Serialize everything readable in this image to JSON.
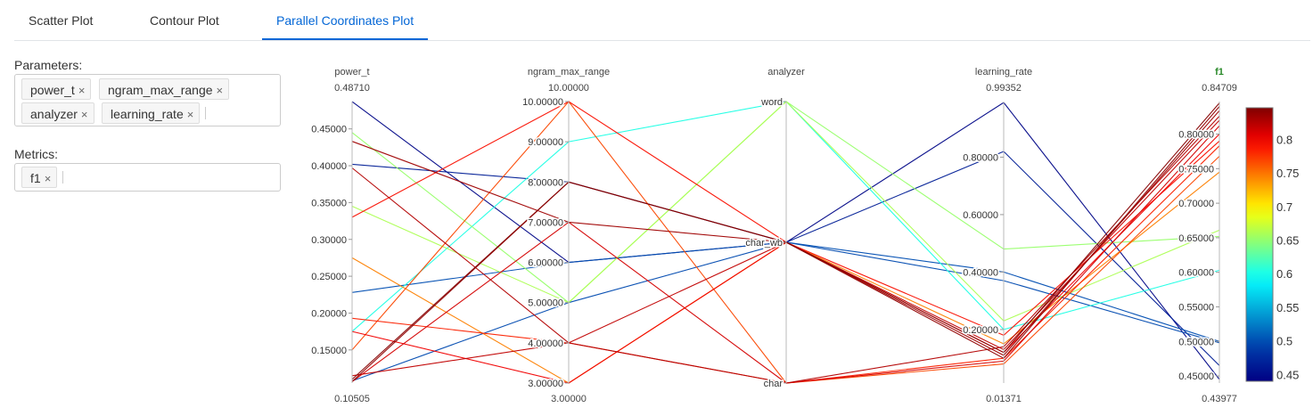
{
  "tabs": [
    {
      "label": "Scatter Plot",
      "active": false
    },
    {
      "label": "Contour Plot",
      "active": false
    },
    {
      "label": "Parallel Coordinates Plot",
      "active": true
    }
  ],
  "parameters": {
    "label": "Parameters:",
    "chips": [
      "power_t",
      "ngram_max_range",
      "analyzer",
      "learning_rate"
    ],
    "remove_glyph": "×"
  },
  "metrics": {
    "label": "Metrics:",
    "chips": [
      "f1"
    ]
  },
  "chart_data": {
    "type": "parallel_coordinates",
    "dimensions": [
      {
        "name": "power_t",
        "top": "0.48710",
        "bottom": "0.10505",
        "ticks": [
          "0.45000",
          "0.40000",
          "0.35000",
          "0.30000",
          "0.25000",
          "0.20000",
          "0.15000"
        ]
      },
      {
        "name": "ngram_max_range",
        "top": "10.00000",
        "bottom": "3.00000",
        "ticks": [
          "10.00000",
          "9.00000",
          "8.00000",
          "7.00000",
          "6.00000",
          "5.00000",
          "4.00000",
          "3.00000"
        ]
      },
      {
        "name": "analyzer",
        "top": "",
        "bottom": "",
        "ticks": [
          "word",
          "char_wb",
          "char"
        ]
      },
      {
        "name": "learning_rate",
        "top": "0.99352",
        "bottom": "0.01371",
        "ticks": [
          "0.80000",
          "0.60000",
          "0.40000",
          "0.20000"
        ]
      },
      {
        "name": "f1",
        "top": "0.84709",
        "bottom": "0.43977",
        "highlight": true,
        "ticks": [
          "0.80000",
          "0.75000",
          "0.70000",
          "0.65000",
          "0.60000",
          "0.55000",
          "0.50000",
          "0.45000"
        ]
      }
    ],
    "colorbar": {
      "ticks": [
        "0.8",
        "0.75",
        "0.7",
        "0.65",
        "0.6",
        "0.55",
        "0.5",
        "0.45"
      ],
      "min": 0.43977,
      "max": 0.84709,
      "colorscale": "jet"
    },
    "trials": [
      {
        "power_t": 0.487,
        "ngram": 6,
        "analyzer": "char_wb",
        "lr": 0.99,
        "f1": 0.445
      },
      {
        "power_t": 0.402,
        "ngram": 8,
        "analyzer": "char_wb",
        "lr": 0.82,
        "f1": 0.465
      },
      {
        "power_t": 0.228,
        "ngram": 6,
        "analyzer": "char_wb",
        "lr": 0.4,
        "f1": 0.5
      },
      {
        "power_t": 0.108,
        "ngram": 5,
        "analyzer": "char_wb",
        "lr": 0.37,
        "f1": 0.498
      },
      {
        "power_t": 0.175,
        "ngram": 9,
        "analyzer": "word",
        "lr": 0.2,
        "f1": 0.603
      },
      {
        "power_t": 0.445,
        "ngram": 5,
        "analyzer": "word",
        "lr": 0.48,
        "f1": 0.652
      },
      {
        "power_t": 0.345,
        "ngram": 5,
        "analyzer": "word",
        "lr": 0.23,
        "f1": 0.661
      },
      {
        "power_t": 0.275,
        "ngram": 3,
        "analyzer": "char_wb",
        "lr": 0.15,
        "f1": 0.745
      },
      {
        "power_t": 0.15,
        "ngram": 10,
        "analyzer": "char",
        "lr": 0.08,
        "f1": 0.768
      },
      {
        "power_t": 0.193,
        "ngram": 4,
        "analyzer": "char",
        "lr": 0.1,
        "f1": 0.783
      },
      {
        "power_t": 0.33,
        "ngram": 10,
        "analyzer": "char_wb",
        "lr": 0.18,
        "f1": 0.79
      },
      {
        "power_t": 0.175,
        "ngram": 3,
        "analyzer": "char_wb",
        "lr": 0.12,
        "f1": 0.8
      },
      {
        "power_t": 0.107,
        "ngram": 7,
        "analyzer": "char",
        "lr": 0.09,
        "f1": 0.812
      },
      {
        "power_t": 0.115,
        "ngram": 4,
        "analyzer": "char_wb",
        "lr": 0.13,
        "f1": 0.82
      },
      {
        "power_t": 0.397,
        "ngram": 4,
        "analyzer": "char",
        "lr": 0.14,
        "f1": 0.826
      },
      {
        "power_t": 0.433,
        "ngram": 7,
        "analyzer": "char_wb",
        "lr": 0.11,
        "f1": 0.834
      },
      {
        "power_t": 0.107,
        "ngram": 8,
        "analyzer": "char_wb",
        "lr": 0.1,
        "f1": 0.84
      },
      {
        "power_t": 0.11,
        "ngram": 8,
        "analyzer": "char_wb",
        "lr": 0.12,
        "f1": 0.845
      }
    ]
  }
}
